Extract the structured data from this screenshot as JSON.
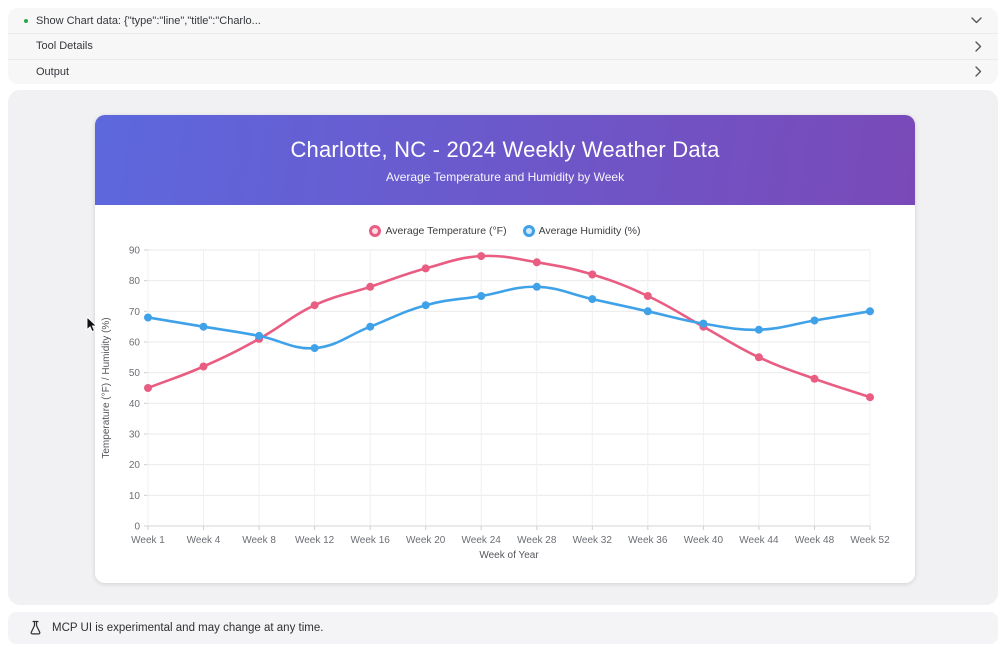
{
  "accordion": {
    "rows": [
      {
        "label": "Show Chart data: {\"type\":\"line\",\"title\":\"Charlo...",
        "chevron": "down",
        "bullet_color": "#2ea44f"
      },
      {
        "label": "Tool Details",
        "chevron": "right"
      },
      {
        "label": "Output",
        "chevron": "right"
      }
    ]
  },
  "chart_card": {
    "title": "Charlotte, NC - 2024 Weekly Weather Data",
    "subtitle": "Average Temperature and Humidity by Week",
    "header_gradient": [
      "#5d68dd",
      "#7a49b8"
    ]
  },
  "chart_data": {
    "type": "line",
    "title": "Charlotte, NC - 2024 Weekly Weather Data",
    "subtitle": "Average Temperature and Humidity by Week",
    "categories": [
      "Week 1",
      "Week 4",
      "Week 8",
      "Week 12",
      "Week 16",
      "Week 20",
      "Week 24",
      "Week 28",
      "Week 32",
      "Week 36",
      "Week 40",
      "Week 44",
      "Week 48",
      "Week 52"
    ],
    "series": [
      {
        "name": "Average Temperature (°F)",
        "color": "#e95d82",
        "marker_fill": "#fbdde5",
        "values": [
          45,
          52,
          61,
          72,
          78,
          84,
          88,
          86,
          82,
          75,
          65,
          55,
          48,
          42
        ]
      },
      {
        "name": "Average Humidity (%)",
        "color": "#3fa2e9",
        "marker_fill": "#d3e9fa",
        "values": [
          68,
          65,
          62,
          58,
          65,
          72,
          75,
          78,
          74,
          70,
          66,
          64,
          67,
          70
        ]
      }
    ],
    "xlabel": "Week of Year",
    "ylabel": "Temperature (°F) / Humidity (%)",
    "ylim": [
      0,
      90
    ],
    "yticks": [
      0,
      10,
      20,
      30,
      40,
      50,
      60,
      70,
      80,
      90
    ],
    "grid": true,
    "legend_position": "top",
    "line_tension": 0.4
  },
  "footer": {
    "text": "MCP UI is experimental and may change at any time."
  }
}
